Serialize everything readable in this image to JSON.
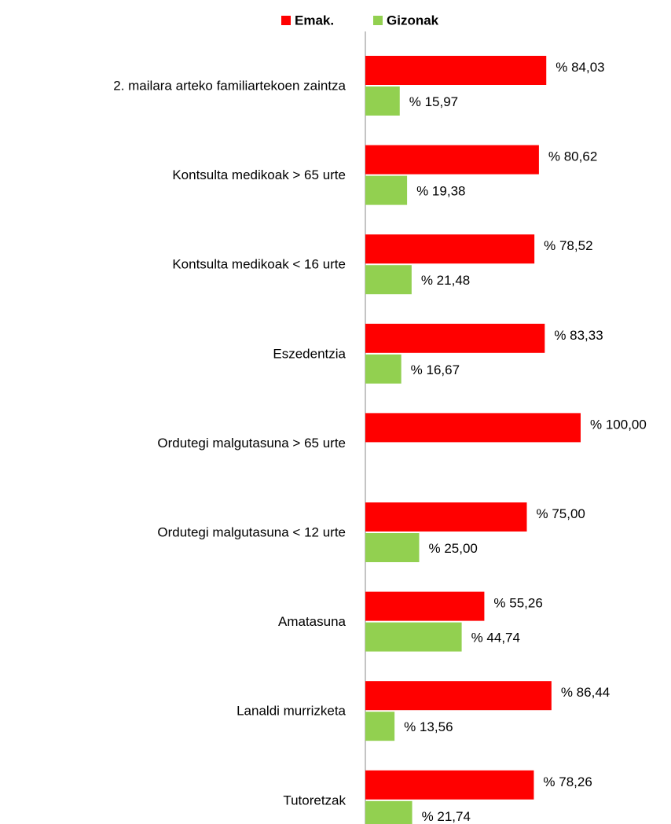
{
  "chart_data": {
    "type": "bar",
    "orientation": "horizontal",
    "categories": [
      "2. mailara arteko familiartekoen zaintza",
      "Kontsulta medikoak > 65 urte",
      "Kontsulta medikoak < 16 urte",
      "Eszedentzia",
      "Ordutegi malgutasuna > 65 urte",
      "Ordutegi malgutasuna < 12 urte",
      "Amatasuna",
      "Lanaldi murrizketa",
      "Tutoretzak"
    ],
    "series": [
      {
        "name": "Emak.",
        "color": "#ff0000",
        "values": [
          84.03,
          80.62,
          78.52,
          83.33,
          100.0,
          75.0,
          55.26,
          86.44,
          78.26
        ],
        "value_labels": [
          "% 84,03",
          "% 80,62",
          "% 78,52",
          "% 83,33",
          "% 100,00",
          "% 75,00",
          "% 55,26",
          "% 86,44",
          "% 78,26"
        ]
      },
      {
        "name": "Gizonak",
        "color": "#92d050",
        "values": [
          15.97,
          19.38,
          21.48,
          16.67,
          0,
          25.0,
          44.74,
          13.56,
          21.74
        ],
        "value_labels": [
          "% 15,97",
          "% 19,38",
          "% 21,48",
          "% 16,67",
          null,
          "% 25,00",
          "% 44,74",
          "% 13,56",
          "% 21,74"
        ]
      }
    ],
    "xlim": [
      0,
      100
    ],
    "legend": "top"
  }
}
